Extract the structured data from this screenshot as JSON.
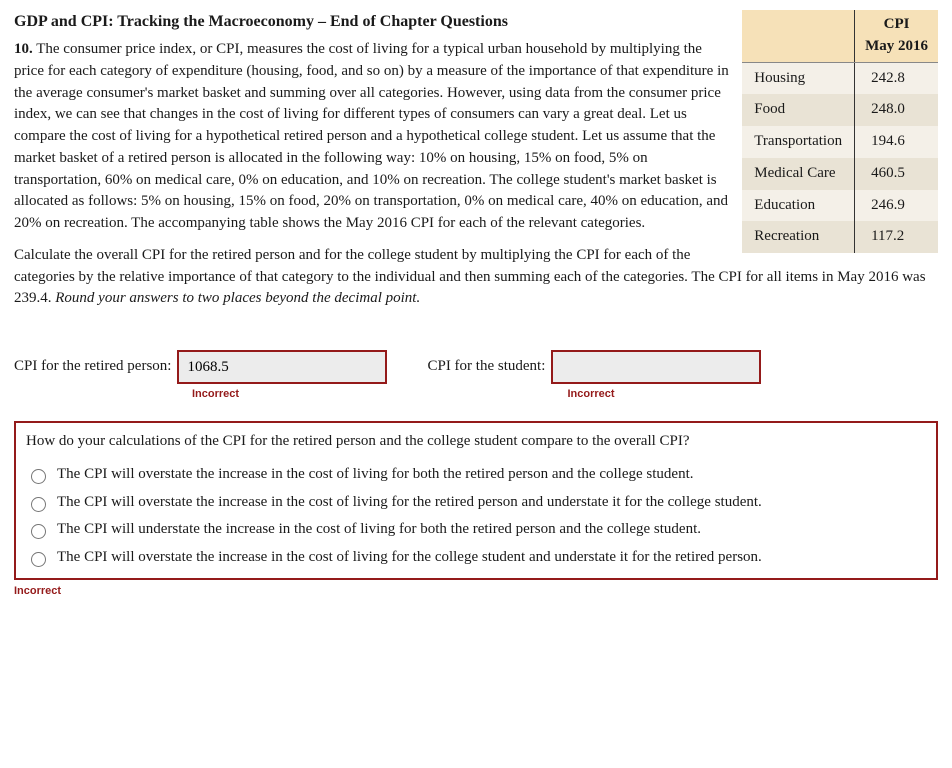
{
  "heading": "GDP and CPI: Tracking the Macroeconomy – End of Chapter Questions",
  "question_number": "10.",
  "paragraph1": " The consumer price index, or CPI, measures the cost of living for a typical urban household by multiplying the price for each category of expenditure (housing, food, and so on) by a measure of the importance of that expenditure in the average consumer's market basket and summing over all categories. However, using data from the consumer price index, we can see that changes in the cost of living for different types of consumers can vary a great deal. Let us compare the cost of living for a hypothetical retired person and a hypothetical college student. Let us assume that the market basket of a retired person is allocated in the following way: 10% on housing, 15% on food, 5% on transportation, 60% on medical care, 0% on education, and 10% on recreation. The college student's market basket is allocated as follows: 5% on housing, 15% on food, 20% on transportation, 0% on medical care, 40% on education, and 20% on recreation. The accompanying table shows the May 2016 CPI for each of the relevant categories.",
  "paragraph2a": "Calculate the overall CPI for the retired person and for the college student by multiplying the CPI for each of the categories by the relative importance of that category to the individual and then summing each of the categories. The CPI for all items in May 2016 was 239.4. ",
  "paragraph2b_italic": "Round your answers to two places beyond the decimal point.",
  "table": {
    "header_left": "",
    "header_right_line1": "CPI",
    "header_right_line2": "May 2016",
    "rows": [
      {
        "category": "Housing",
        "value": "242.8"
      },
      {
        "category": "Food",
        "value": "248.0"
      },
      {
        "category": "Transportation",
        "value": "194.6"
      },
      {
        "category": "Medical Care",
        "value": "460.5"
      },
      {
        "category": "Education",
        "value": "246.9"
      },
      {
        "category": "Recreation",
        "value": "117.2"
      }
    ],
    "header_bg": "#f6e1b8",
    "row_bg_odd": "#f4f0e8",
    "row_bg_even": "#e9e3d5"
  },
  "answers": {
    "retired_label": "CPI for the retired person:",
    "retired_value": "1068.5",
    "retired_feedback": "Incorrect",
    "student_label": "CPI for the student:",
    "student_value": "",
    "student_feedback": "Incorrect"
  },
  "mc": {
    "question": "How do your calculations of the CPI for the retired person and the college student compare to the overall CPI?",
    "options": [
      "The CPI will overstate the increase in the cost of living for both the retired person and the college student.",
      "The CPI will overstate the increase in the cost of living for the retired person and understate it for the college student.",
      "The CPI will understate the increase in the cost of living for both the retired person and the college student.",
      "The CPI will overstate the increase in the cost of living for the college student and understate it for the retired person."
    ],
    "feedback": "Incorrect"
  },
  "colors": {
    "error": "#941a1a",
    "input_bg": "#ececec"
  }
}
